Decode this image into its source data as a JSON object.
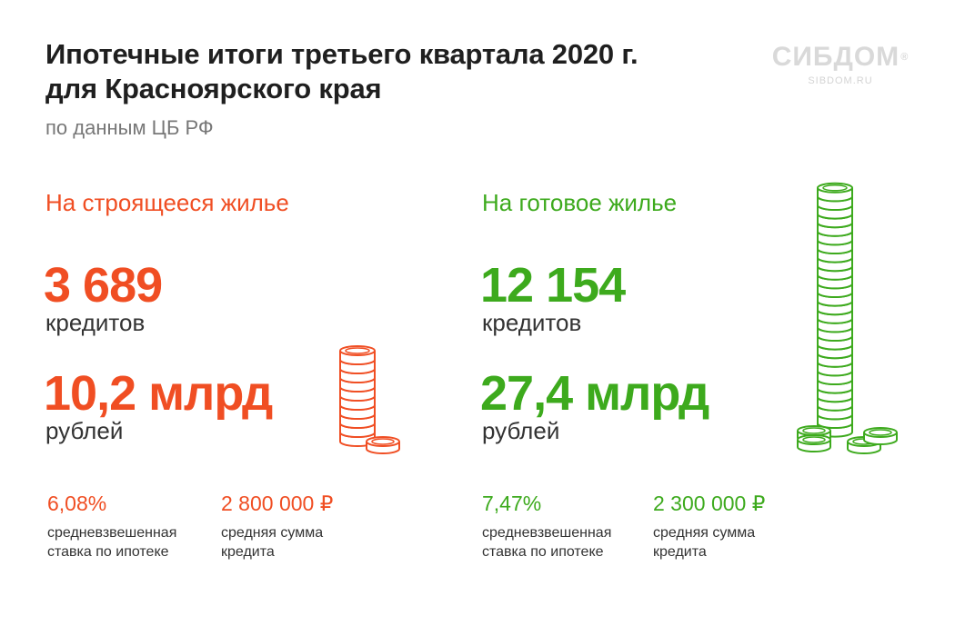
{
  "header": {
    "title_line1": "Ипотечные итоги третьего квартала 2020 г.",
    "title_line2": "для Красноярского края",
    "subtitle": "по данным ЦБ РФ"
  },
  "logo": {
    "name": "СИБДОМ",
    "reg": "®",
    "url": "SIBDOM.RU"
  },
  "colors": {
    "accent_red": "#f04e23",
    "accent_green": "#3daa1d",
    "text_dark": "#1f1f1f",
    "text_muted": "#777777"
  },
  "sections": [
    {
      "title": "На строящееся жилье",
      "loans_count": "3 689",
      "loans_unit": "кредитов",
      "amount": "10,2 млрд",
      "amount_unit": "рублей",
      "rate": "6,08%",
      "rate_caption_line1": "средневзвешенная",
      "rate_caption_line2": "ставка по ипотеке",
      "avg_sum": "2 800 000 ₽",
      "avg_sum_caption_line1": "средняя сумма",
      "avg_sum_caption_line2": "кредита",
      "icon": "coin-stack-icon"
    },
    {
      "title": "На готовое жилье",
      "loans_count": "12 154",
      "loans_unit": "кредитов",
      "amount": "27,4 млрд",
      "amount_unit": "рублей",
      "rate": "7,47%",
      "rate_caption_line1": "средневзвешенная",
      "rate_caption_line2": "ставка по ипотеке",
      "avg_sum": "2 300 000 ₽",
      "avg_sum_caption_line1": "средняя сумма",
      "avg_sum_caption_line2": "кредита",
      "icon": "coin-stack-icon"
    }
  ]
}
